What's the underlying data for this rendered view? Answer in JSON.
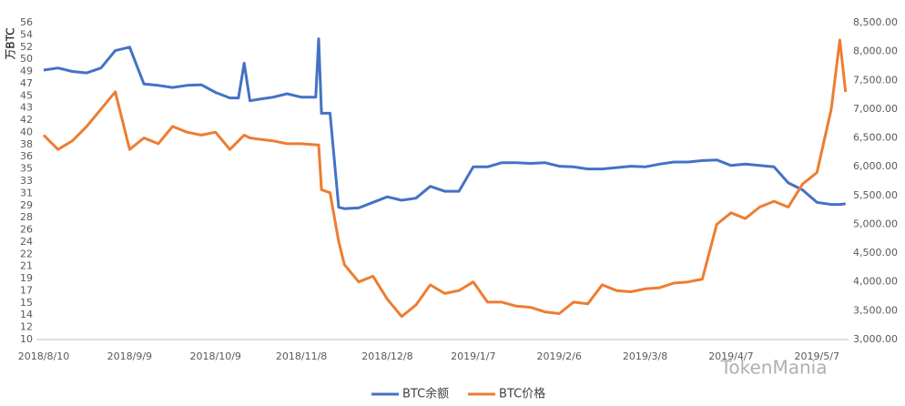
{
  "chart_data": {
    "type": "line",
    "y_label": "万BTC",
    "watermark": "TokenMania",
    "x": [
      "2018/8/10",
      "2018/8/15",
      "2018/8/20",
      "2018/8/25",
      "2018/8/30",
      "2018/9/4",
      "2018/9/9",
      "2018/9/14",
      "2018/9/19",
      "2018/9/24",
      "2018/9/29",
      "2018/10/4",
      "2018/10/9",
      "2018/10/14",
      "2018/10/17",
      "2018/10/19",
      "2018/10/21",
      "2018/10/24",
      "2018/10/29",
      "2018/11/3",
      "2018/11/8",
      "2018/11/13",
      "2018/11/14",
      "2018/11/15",
      "2018/11/18",
      "2018/11/21",
      "2018/11/23",
      "2018/11/28",
      "2018/12/3",
      "2018/12/8",
      "2018/12/13",
      "2018/12/18",
      "2018/12/23",
      "2018/12/28",
      "2019/1/2",
      "2019/1/7",
      "2019/1/12",
      "2019/1/17",
      "2019/1/22",
      "2019/1/27",
      "2019/2/1",
      "2019/2/6",
      "2019/2/11",
      "2019/2/16",
      "2019/2/21",
      "2019/2/26",
      "2019/3/3",
      "2019/3/8",
      "2019/3/13",
      "2019/3/18",
      "2019/3/23",
      "2019/3/28",
      "2019/4/2",
      "2019/4/7",
      "2019/4/12",
      "2019/4/17",
      "2019/4/22",
      "2019/4/27",
      "2019/5/2",
      "2019/5/7",
      "2019/5/12",
      "2019/5/15",
      "2019/5/17"
    ],
    "series": [
      {
        "name": "BTC余额",
        "color": "#4472c4",
        "axis": "y",
        "values": [
          48.7,
          49,
          48.5,
          48.3,
          49,
          51.5,
          52,
          46.7,
          46.5,
          46.2,
          46.5,
          46.6,
          45.5,
          44.7,
          44.7,
          49.7,
          44.3,
          44.5,
          44.8,
          45.3,
          44.8,
          44.8,
          53.2,
          42.5,
          42.5,
          29,
          28.8,
          28.9,
          29.7,
          30.5,
          30,
          30.3,
          32,
          31.3,
          31.3,
          34.8,
          34.8,
          35.4,
          35.4,
          35.3,
          35.4,
          34.9,
          34.8,
          34.5,
          34.5,
          34.7,
          34.9,
          34.8,
          35.2,
          35.5,
          35.5,
          35.7,
          35.8,
          35,
          35.2,
          35,
          34.8,
          32.5,
          31.5,
          29.7,
          29.4,
          29.4,
          29.5
        ]
      },
      {
        "name": "BTC价格",
        "color": "#ed7d31",
        "axis": "y2",
        "values": [
          6550,
          6300,
          6450,
          6700,
          7000,
          7300,
          6300,
          6500,
          6400,
          6700,
          6600,
          6550,
          6600,
          6300,
          6450,
          6550,
          6500,
          6480,
          6450,
          6400,
          6400,
          6380,
          6380,
          5600,
          5550,
          4700,
          4300,
          4000,
          4100,
          3700,
          3400,
          3600,
          3950,
          3800,
          3850,
          4000,
          3650,
          3650,
          3580,
          3560,
          3480,
          3450,
          3650,
          3620,
          3950,
          3850,
          3830,
          3880,
          3900,
          3980,
          4000,
          4050,
          5000,
          5200,
          5100,
          5300,
          5400,
          5300,
          5700,
          5900,
          7000,
          8200,
          7300
        ]
      }
    ],
    "xlim": [
      "2018/8/10",
      "2019/5/19"
    ],
    "xticks": [
      "2018/8/10",
      "2018/9/9",
      "2018/10/9",
      "2018/11/8",
      "2018/12/8",
      "2019/1/7",
      "2019/2/6",
      "2019/3/8",
      "2019/4/7",
      "2019/5/7"
    ],
    "ylim": [
      10,
      55.5
    ],
    "yticks": [
      10,
      {
        "value": 11.75,
        "label": "12"
      },
      {
        "value": 13.5,
        "label": "14"
      },
      {
        "value": 15.25,
        "label": "15"
      },
      17,
      {
        "value": 18.75,
        "label": "19"
      },
      {
        "value": 20.5,
        "label": "21"
      },
      {
        "value": 22.25,
        "label": "22"
      },
      24,
      {
        "value": 25.75,
        "label": "26"
      },
      {
        "value": 27.5,
        "label": "28"
      },
      {
        "value": 29.25,
        "label": "29"
      },
      31,
      {
        "value": 32.75,
        "label": "33"
      },
      {
        "value": 34.5,
        "label": "35"
      },
      {
        "value": 36.25,
        "label": "36"
      },
      38,
      {
        "value": 39.75,
        "label": "40"
      },
      {
        "value": 41.5,
        "label": "42"
      },
      {
        "value": 43.25,
        "label": "43"
      },
      45,
      {
        "value": 46.75,
        "label": "47"
      },
      {
        "value": 48.5,
        "label": "49"
      },
      {
        "value": 50.25,
        "label": "50"
      },
      52,
      {
        "value": 53.75,
        "label": "54"
      },
      {
        "value": 55.5,
        "label": "56"
      }
    ],
    "y2lim": [
      3000,
      8500
    ],
    "y2ticks": [
      {
        "value": 3000,
        "label": "3,000.00"
      },
      {
        "value": 3500,
        "label": "3,500.00"
      },
      {
        "value": 4000,
        "label": "4,000.00"
      },
      {
        "value": 4500,
        "label": "4,500.00"
      },
      {
        "value": 5000,
        "label": "5,000.00"
      },
      {
        "value": 5500,
        "label": "5,500.00"
      },
      {
        "value": 6000,
        "label": "6,000.00"
      },
      {
        "value": 6500,
        "label": "6,500.00"
      },
      {
        "value": 7000,
        "label": "7,000.00"
      },
      {
        "value": 7500,
        "label": "7,500.00"
      },
      {
        "value": 8000,
        "label": "8,000.00"
      },
      {
        "value": 8500,
        "label": "8,500.00"
      }
    ],
    "legend": "bottom"
  }
}
